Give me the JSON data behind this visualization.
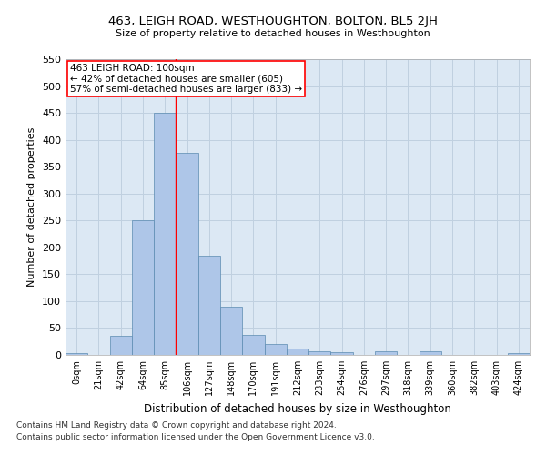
{
  "title": "463, LEIGH ROAD, WESTHOUGHTON, BOLTON, BL5 2JH",
  "subtitle": "Size of property relative to detached houses in Westhoughton",
  "xlabel": "Distribution of detached houses by size in Westhoughton",
  "ylabel": "Number of detached properties",
  "footnote1": "Contains HM Land Registry data © Crown copyright and database right 2024.",
  "footnote2": "Contains public sector information licensed under the Open Government Licence v3.0.",
  "annotation_line1": "463 LEIGH ROAD: 100sqm",
  "annotation_line2": "← 42% of detached houses are smaller (605)",
  "annotation_line3": "57% of semi-detached houses are larger (833) →",
  "bar_labels": [
    "0sqm",
    "21sqm",
    "42sqm",
    "64sqm",
    "85sqm",
    "106sqm",
    "127sqm",
    "148sqm",
    "170sqm",
    "191sqm",
    "212sqm",
    "233sqm",
    "254sqm",
    "276sqm",
    "297sqm",
    "318sqm",
    "339sqm",
    "360sqm",
    "382sqm",
    "403sqm",
    "424sqm"
  ],
  "bar_values": [
    4,
    0,
    35,
    250,
    450,
    375,
    185,
    90,
    38,
    20,
    12,
    6,
    5,
    0,
    6,
    0,
    6,
    0,
    0,
    0,
    4
  ],
  "bar_color": "#aec6e8",
  "bar_edge_color": "#5a8ab0",
  "grid_color": "#c0d0e0",
  "background_color": "#dce8f4",
  "red_line_x": 4.5,
  "ylim": [
    0,
    550
  ],
  "yticks": [
    0,
    50,
    100,
    150,
    200,
    250,
    300,
    350,
    400,
    450,
    500,
    550
  ]
}
